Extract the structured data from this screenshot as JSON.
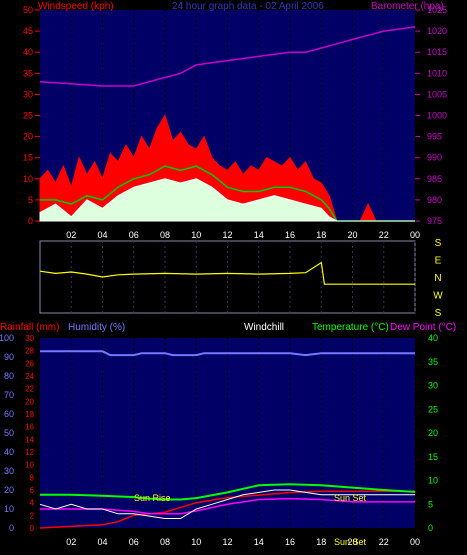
{
  "chart_data": [
    {
      "type": "line",
      "title": "24 hour graph data - 02 April 2006",
      "ylabel_left": "Windspeed (kph)",
      "ylabel_right": "Barometer (hpa)",
      "ylim_left": [
        0,
        50
      ],
      "ylim_right": [
        975,
        1025
      ],
      "yticks_left": [
        "0",
        "5",
        "10",
        "15",
        "20",
        "25",
        "30",
        "35",
        "40",
        "45",
        "50"
      ],
      "yticks_right": [
        "975",
        "980",
        "985",
        "990",
        "995",
        "1000",
        "1005",
        "1010",
        "1015",
        "1020",
        "1025"
      ],
      "xticks": [
        "02",
        "04",
        "06",
        "08",
        "10",
        "12",
        "14",
        "16",
        "18",
        "20",
        "22",
        "00"
      ],
      "x_range_hours": [
        0,
        24
      ],
      "colors": {
        "gust": "#ff0000",
        "avg": "#00cc00",
        "wind": "#ffffff",
        "baro": "#cc00cc"
      },
      "series": [
        {
          "key": "baro",
          "x": [
            0,
            2,
            4,
            5,
            6,
            7,
            8,
            9,
            10,
            12,
            14,
            16,
            17,
            18,
            19,
            20,
            21,
            22,
            23,
            24
          ],
          "values": [
            1008,
            1007.5,
            1007,
            1007,
            1007,
            1008,
            1009,
            1010,
            1012,
            1013,
            1014,
            1015,
            1015,
            1016,
            1017,
            1018,
            1019,
            1020,
            1020.5,
            1021
          ]
        },
        {
          "key": "gust",
          "x": [
            0,
            0.5,
            1,
            1.5,
            2,
            2.5,
            3,
            3.5,
            4,
            4.5,
            5,
            5.5,
            6,
            6.5,
            7,
            7.5,
            8,
            8.5,
            9,
            9.5,
            10,
            10.5,
            11,
            11.5,
            12,
            12.5,
            13,
            13.5,
            14,
            14.5,
            15,
            15.5,
            16,
            16.5,
            17,
            17.5,
            18,
            18.5,
            19,
            19.5,
            20,
            20.5,
            21,
            21.5,
            22,
            22.5,
            23,
            23.5,
            24
          ],
          "values": [
            10,
            12,
            9,
            13,
            8,
            15,
            11,
            14,
            10,
            16,
            14,
            18,
            15,
            20,
            17,
            22,
            25,
            19,
            21,
            18,
            17,
            20,
            15,
            13,
            12,
            14,
            11,
            13,
            12,
            15,
            14,
            13,
            15,
            12,
            14,
            10,
            9,
            6,
            0,
            0,
            0,
            0,
            4,
            0,
            0,
            0,
            0,
            0,
            0
          ]
        },
        {
          "key": "avg",
          "x": [
            0,
            1,
            2,
            3,
            4,
            5,
            6,
            7,
            8,
            9,
            10,
            11,
            12,
            13,
            14,
            15,
            16,
            17,
            18,
            18.5,
            19,
            20,
            22,
            24
          ],
          "values": [
            5,
            5,
            4,
            6,
            5,
            8,
            10,
            11,
            13,
            12,
            13,
            11,
            8,
            7,
            7,
            8,
            8,
            7,
            5,
            3,
            0,
            0,
            0,
            0
          ]
        },
        {
          "key": "wind",
          "x": [
            0,
            1,
            2,
            3,
            4,
            5,
            6,
            7,
            8,
            9,
            10,
            11,
            12,
            13,
            14,
            15,
            16,
            17,
            18,
            18.5,
            19,
            20,
            22,
            24
          ],
          "values": [
            2,
            4,
            1,
            5,
            3,
            6,
            8,
            9,
            10,
            9,
            10,
            8,
            5,
            4,
            5,
            6,
            5,
            4,
            3,
            1,
            0,
            0,
            0,
            0
          ]
        }
      ]
    },
    {
      "type": "line",
      "title": "",
      "ylabel": "",
      "yticks_right": [
        "S",
        "E",
        "N",
        "W",
        "S"
      ],
      "xticks": [
        "02",
        "04",
        "06",
        "08",
        "10",
        "12",
        "14",
        "16",
        "18",
        "20",
        "22",
        "00"
      ],
      "x_range_hours": [
        0,
        24
      ],
      "color": "#ffff00",
      "series": [
        {
          "key": "winddir",
          "x": [
            0,
            1,
            2,
            3,
            4,
            5,
            6,
            8,
            10,
            12,
            14,
            16,
            17,
            18,
            18.2,
            19,
            20,
            22,
            24
          ],
          "values": [
            0.42,
            0.45,
            0.43,
            0.46,
            0.5,
            0.47,
            0.46,
            0.45,
            0.46,
            0.45,
            0.46,
            0.45,
            0.44,
            0.3,
            0.6,
            0.6,
            0.6,
            0.6,
            0.6
          ]
        }
      ]
    },
    {
      "type": "line",
      "title": "",
      "ylabel_left_1": "Rainfall (mm)",
      "ylabel_left_2": "Humidity (%)",
      "label_windchill": "Windchill",
      "label_temperature": "Temperature (°C)",
      "label_dewpoint": "Dew Point (°C)",
      "yticks_humidity": [
        "0",
        "10",
        "20",
        "30",
        "40",
        "50",
        "60",
        "70",
        "80",
        "90",
        "100"
      ],
      "yticks_rain": [
        "0",
        "2",
        "4",
        "6",
        "8",
        "10",
        "12",
        "14",
        "16",
        "18",
        "20",
        "22",
        "24",
        "26",
        "28",
        "30"
      ],
      "yticks_temp": [
        "0",
        "5",
        "10",
        "15",
        "20",
        "25",
        "30",
        "35",
        "40"
      ],
      "xticks": [
        "02",
        "04",
        "06",
        "08",
        "10",
        "12",
        "14",
        "16",
        "18",
        "20",
        "22",
        "00"
      ],
      "x_range_hours": [
        0,
        24
      ],
      "annotations": {
        "sunrise": "Sun Rise",
        "sunset": "Sun Set",
        "sunset_time": "Sun Set"
      },
      "colors": {
        "humidity": "#7777ff",
        "rain": "#ff0000",
        "temp": "#00ff00",
        "dew": "#ff00ff",
        "windchill": "#ffffff"
      },
      "series": [
        {
          "key": "humidity",
          "x": [
            0,
            4,
            4.5,
            6,
            6.5,
            8,
            8.5,
            10,
            10.5,
            12,
            16,
            17,
            18,
            19,
            20,
            24
          ],
          "values": [
            93,
            93,
            91,
            91,
            92,
            92,
            91,
            91,
            92,
            92,
            92,
            91,
            92,
            92,
            92,
            92
          ]
        },
        {
          "key": "rain",
          "x": [
            0,
            4,
            5,
            5.5,
            6,
            8,
            10,
            12,
            14,
            16,
            18,
            20,
            24
          ],
          "values": [
            0,
            0.5,
            1,
            1.5,
            2,
            2.5,
            4,
            4.8,
            5.2,
            5.6,
            5.8,
            5.8,
            5.8
          ]
        },
        {
          "key": "temp",
          "x": [
            0,
            2,
            4,
            6,
            7,
            8,
            9,
            10,
            12,
            14,
            16,
            18,
            20,
            22,
            24
          ],
          "values": [
            7,
            7,
            6.8,
            6.5,
            6.2,
            6.0,
            6.0,
            6.3,
            7.5,
            9,
            9.2,
            9,
            8.5,
            8,
            7.6
          ]
        },
        {
          "key": "dew",
          "x": [
            0,
            2,
            4,
            6,
            7,
            8,
            9,
            10,
            12,
            14,
            16,
            18,
            20,
            22,
            24
          ],
          "values": [
            4,
            4,
            4,
            3.5,
            3,
            3,
            3,
            3.6,
            5,
            6,
            6.2,
            6,
            5.5,
            5.5,
            5.5
          ]
        },
        {
          "key": "windchill",
          "x": [
            0,
            1,
            2,
            3,
            4,
            5,
            6,
            7,
            8,
            9,
            10,
            11,
            12,
            13,
            14,
            15,
            16,
            17,
            18,
            20,
            22,
            24
          ],
          "values": [
            5,
            4,
            5,
            4,
            4,
            3,
            3,
            2.5,
            2,
            2,
            4,
            5,
            6,
            7,
            7.5,
            8,
            8,
            7.5,
            7,
            7,
            7,
            7
          ]
        }
      ]
    }
  ]
}
